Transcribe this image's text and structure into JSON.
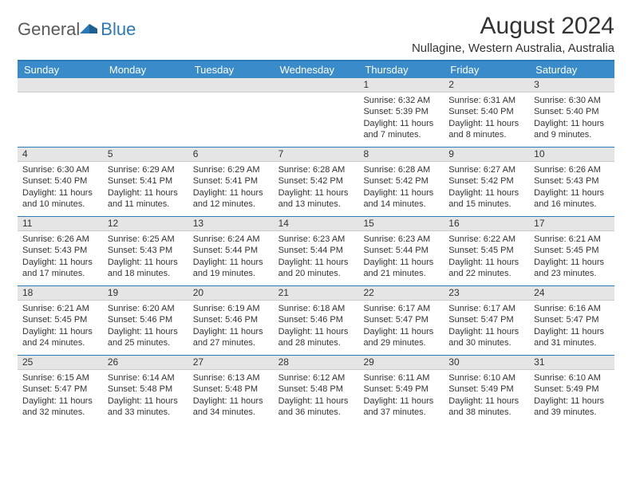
{
  "logo": {
    "general": "General",
    "blue": "Blue"
  },
  "header": {
    "month_title": "August 2024",
    "location": "Nullagine, Western Australia, Australia"
  },
  "colors": {
    "header_bar": "#3a8bc9",
    "header_border": "#2a7ab8",
    "band_bg": "#e5e5e5",
    "text": "#333333",
    "logo_gray": "#5a5a5a",
    "logo_blue": "#2a7ab8",
    "background": "#ffffff"
  },
  "typography": {
    "title_fontsize": 30,
    "location_fontsize": 15,
    "dow_fontsize": 13,
    "body_fontsize": 11
  },
  "days_of_week": [
    "Sunday",
    "Monday",
    "Tuesday",
    "Wednesday",
    "Thursday",
    "Friday",
    "Saturday"
  ],
  "weeks": [
    [
      null,
      null,
      null,
      null,
      {
        "n": "1",
        "sr": "Sunrise: 6:32 AM",
        "ss": "Sunset: 5:39 PM",
        "d1": "Daylight: 11 hours",
        "d2": "and 7 minutes."
      },
      {
        "n": "2",
        "sr": "Sunrise: 6:31 AM",
        "ss": "Sunset: 5:40 PM",
        "d1": "Daylight: 11 hours",
        "d2": "and 8 minutes."
      },
      {
        "n": "3",
        "sr": "Sunrise: 6:30 AM",
        "ss": "Sunset: 5:40 PM",
        "d1": "Daylight: 11 hours",
        "d2": "and 9 minutes."
      }
    ],
    [
      {
        "n": "4",
        "sr": "Sunrise: 6:30 AM",
        "ss": "Sunset: 5:40 PM",
        "d1": "Daylight: 11 hours",
        "d2": "and 10 minutes."
      },
      {
        "n": "5",
        "sr": "Sunrise: 6:29 AM",
        "ss": "Sunset: 5:41 PM",
        "d1": "Daylight: 11 hours",
        "d2": "and 11 minutes."
      },
      {
        "n": "6",
        "sr": "Sunrise: 6:29 AM",
        "ss": "Sunset: 5:41 PM",
        "d1": "Daylight: 11 hours",
        "d2": "and 12 minutes."
      },
      {
        "n": "7",
        "sr": "Sunrise: 6:28 AM",
        "ss": "Sunset: 5:42 PM",
        "d1": "Daylight: 11 hours",
        "d2": "and 13 minutes."
      },
      {
        "n": "8",
        "sr": "Sunrise: 6:28 AM",
        "ss": "Sunset: 5:42 PM",
        "d1": "Daylight: 11 hours",
        "d2": "and 14 minutes."
      },
      {
        "n": "9",
        "sr": "Sunrise: 6:27 AM",
        "ss": "Sunset: 5:42 PM",
        "d1": "Daylight: 11 hours",
        "d2": "and 15 minutes."
      },
      {
        "n": "10",
        "sr": "Sunrise: 6:26 AM",
        "ss": "Sunset: 5:43 PM",
        "d1": "Daylight: 11 hours",
        "d2": "and 16 minutes."
      }
    ],
    [
      {
        "n": "11",
        "sr": "Sunrise: 6:26 AM",
        "ss": "Sunset: 5:43 PM",
        "d1": "Daylight: 11 hours",
        "d2": "and 17 minutes."
      },
      {
        "n": "12",
        "sr": "Sunrise: 6:25 AM",
        "ss": "Sunset: 5:43 PM",
        "d1": "Daylight: 11 hours",
        "d2": "and 18 minutes."
      },
      {
        "n": "13",
        "sr": "Sunrise: 6:24 AM",
        "ss": "Sunset: 5:44 PM",
        "d1": "Daylight: 11 hours",
        "d2": "and 19 minutes."
      },
      {
        "n": "14",
        "sr": "Sunrise: 6:23 AM",
        "ss": "Sunset: 5:44 PM",
        "d1": "Daylight: 11 hours",
        "d2": "and 20 minutes."
      },
      {
        "n": "15",
        "sr": "Sunrise: 6:23 AM",
        "ss": "Sunset: 5:44 PM",
        "d1": "Daylight: 11 hours",
        "d2": "and 21 minutes."
      },
      {
        "n": "16",
        "sr": "Sunrise: 6:22 AM",
        "ss": "Sunset: 5:45 PM",
        "d1": "Daylight: 11 hours",
        "d2": "and 22 minutes."
      },
      {
        "n": "17",
        "sr": "Sunrise: 6:21 AM",
        "ss": "Sunset: 5:45 PM",
        "d1": "Daylight: 11 hours",
        "d2": "and 23 minutes."
      }
    ],
    [
      {
        "n": "18",
        "sr": "Sunrise: 6:21 AM",
        "ss": "Sunset: 5:45 PM",
        "d1": "Daylight: 11 hours",
        "d2": "and 24 minutes."
      },
      {
        "n": "19",
        "sr": "Sunrise: 6:20 AM",
        "ss": "Sunset: 5:46 PM",
        "d1": "Daylight: 11 hours",
        "d2": "and 25 minutes."
      },
      {
        "n": "20",
        "sr": "Sunrise: 6:19 AM",
        "ss": "Sunset: 5:46 PM",
        "d1": "Daylight: 11 hours",
        "d2": "and 27 minutes."
      },
      {
        "n": "21",
        "sr": "Sunrise: 6:18 AM",
        "ss": "Sunset: 5:46 PM",
        "d1": "Daylight: 11 hours",
        "d2": "and 28 minutes."
      },
      {
        "n": "22",
        "sr": "Sunrise: 6:17 AM",
        "ss": "Sunset: 5:47 PM",
        "d1": "Daylight: 11 hours",
        "d2": "and 29 minutes."
      },
      {
        "n": "23",
        "sr": "Sunrise: 6:17 AM",
        "ss": "Sunset: 5:47 PM",
        "d1": "Daylight: 11 hours",
        "d2": "and 30 minutes."
      },
      {
        "n": "24",
        "sr": "Sunrise: 6:16 AM",
        "ss": "Sunset: 5:47 PM",
        "d1": "Daylight: 11 hours",
        "d2": "and 31 minutes."
      }
    ],
    [
      {
        "n": "25",
        "sr": "Sunrise: 6:15 AM",
        "ss": "Sunset: 5:47 PM",
        "d1": "Daylight: 11 hours",
        "d2": "and 32 minutes."
      },
      {
        "n": "26",
        "sr": "Sunrise: 6:14 AM",
        "ss": "Sunset: 5:48 PM",
        "d1": "Daylight: 11 hours",
        "d2": "and 33 minutes."
      },
      {
        "n": "27",
        "sr": "Sunrise: 6:13 AM",
        "ss": "Sunset: 5:48 PM",
        "d1": "Daylight: 11 hours",
        "d2": "and 34 minutes."
      },
      {
        "n": "28",
        "sr": "Sunrise: 6:12 AM",
        "ss": "Sunset: 5:48 PM",
        "d1": "Daylight: 11 hours",
        "d2": "and 36 minutes."
      },
      {
        "n": "29",
        "sr": "Sunrise: 6:11 AM",
        "ss": "Sunset: 5:49 PM",
        "d1": "Daylight: 11 hours",
        "d2": "and 37 minutes."
      },
      {
        "n": "30",
        "sr": "Sunrise: 6:10 AM",
        "ss": "Sunset: 5:49 PM",
        "d1": "Daylight: 11 hours",
        "d2": "and 38 minutes."
      },
      {
        "n": "31",
        "sr": "Sunrise: 6:10 AM",
        "ss": "Sunset: 5:49 PM",
        "d1": "Daylight: 11 hours",
        "d2": "and 39 minutes."
      }
    ]
  ]
}
